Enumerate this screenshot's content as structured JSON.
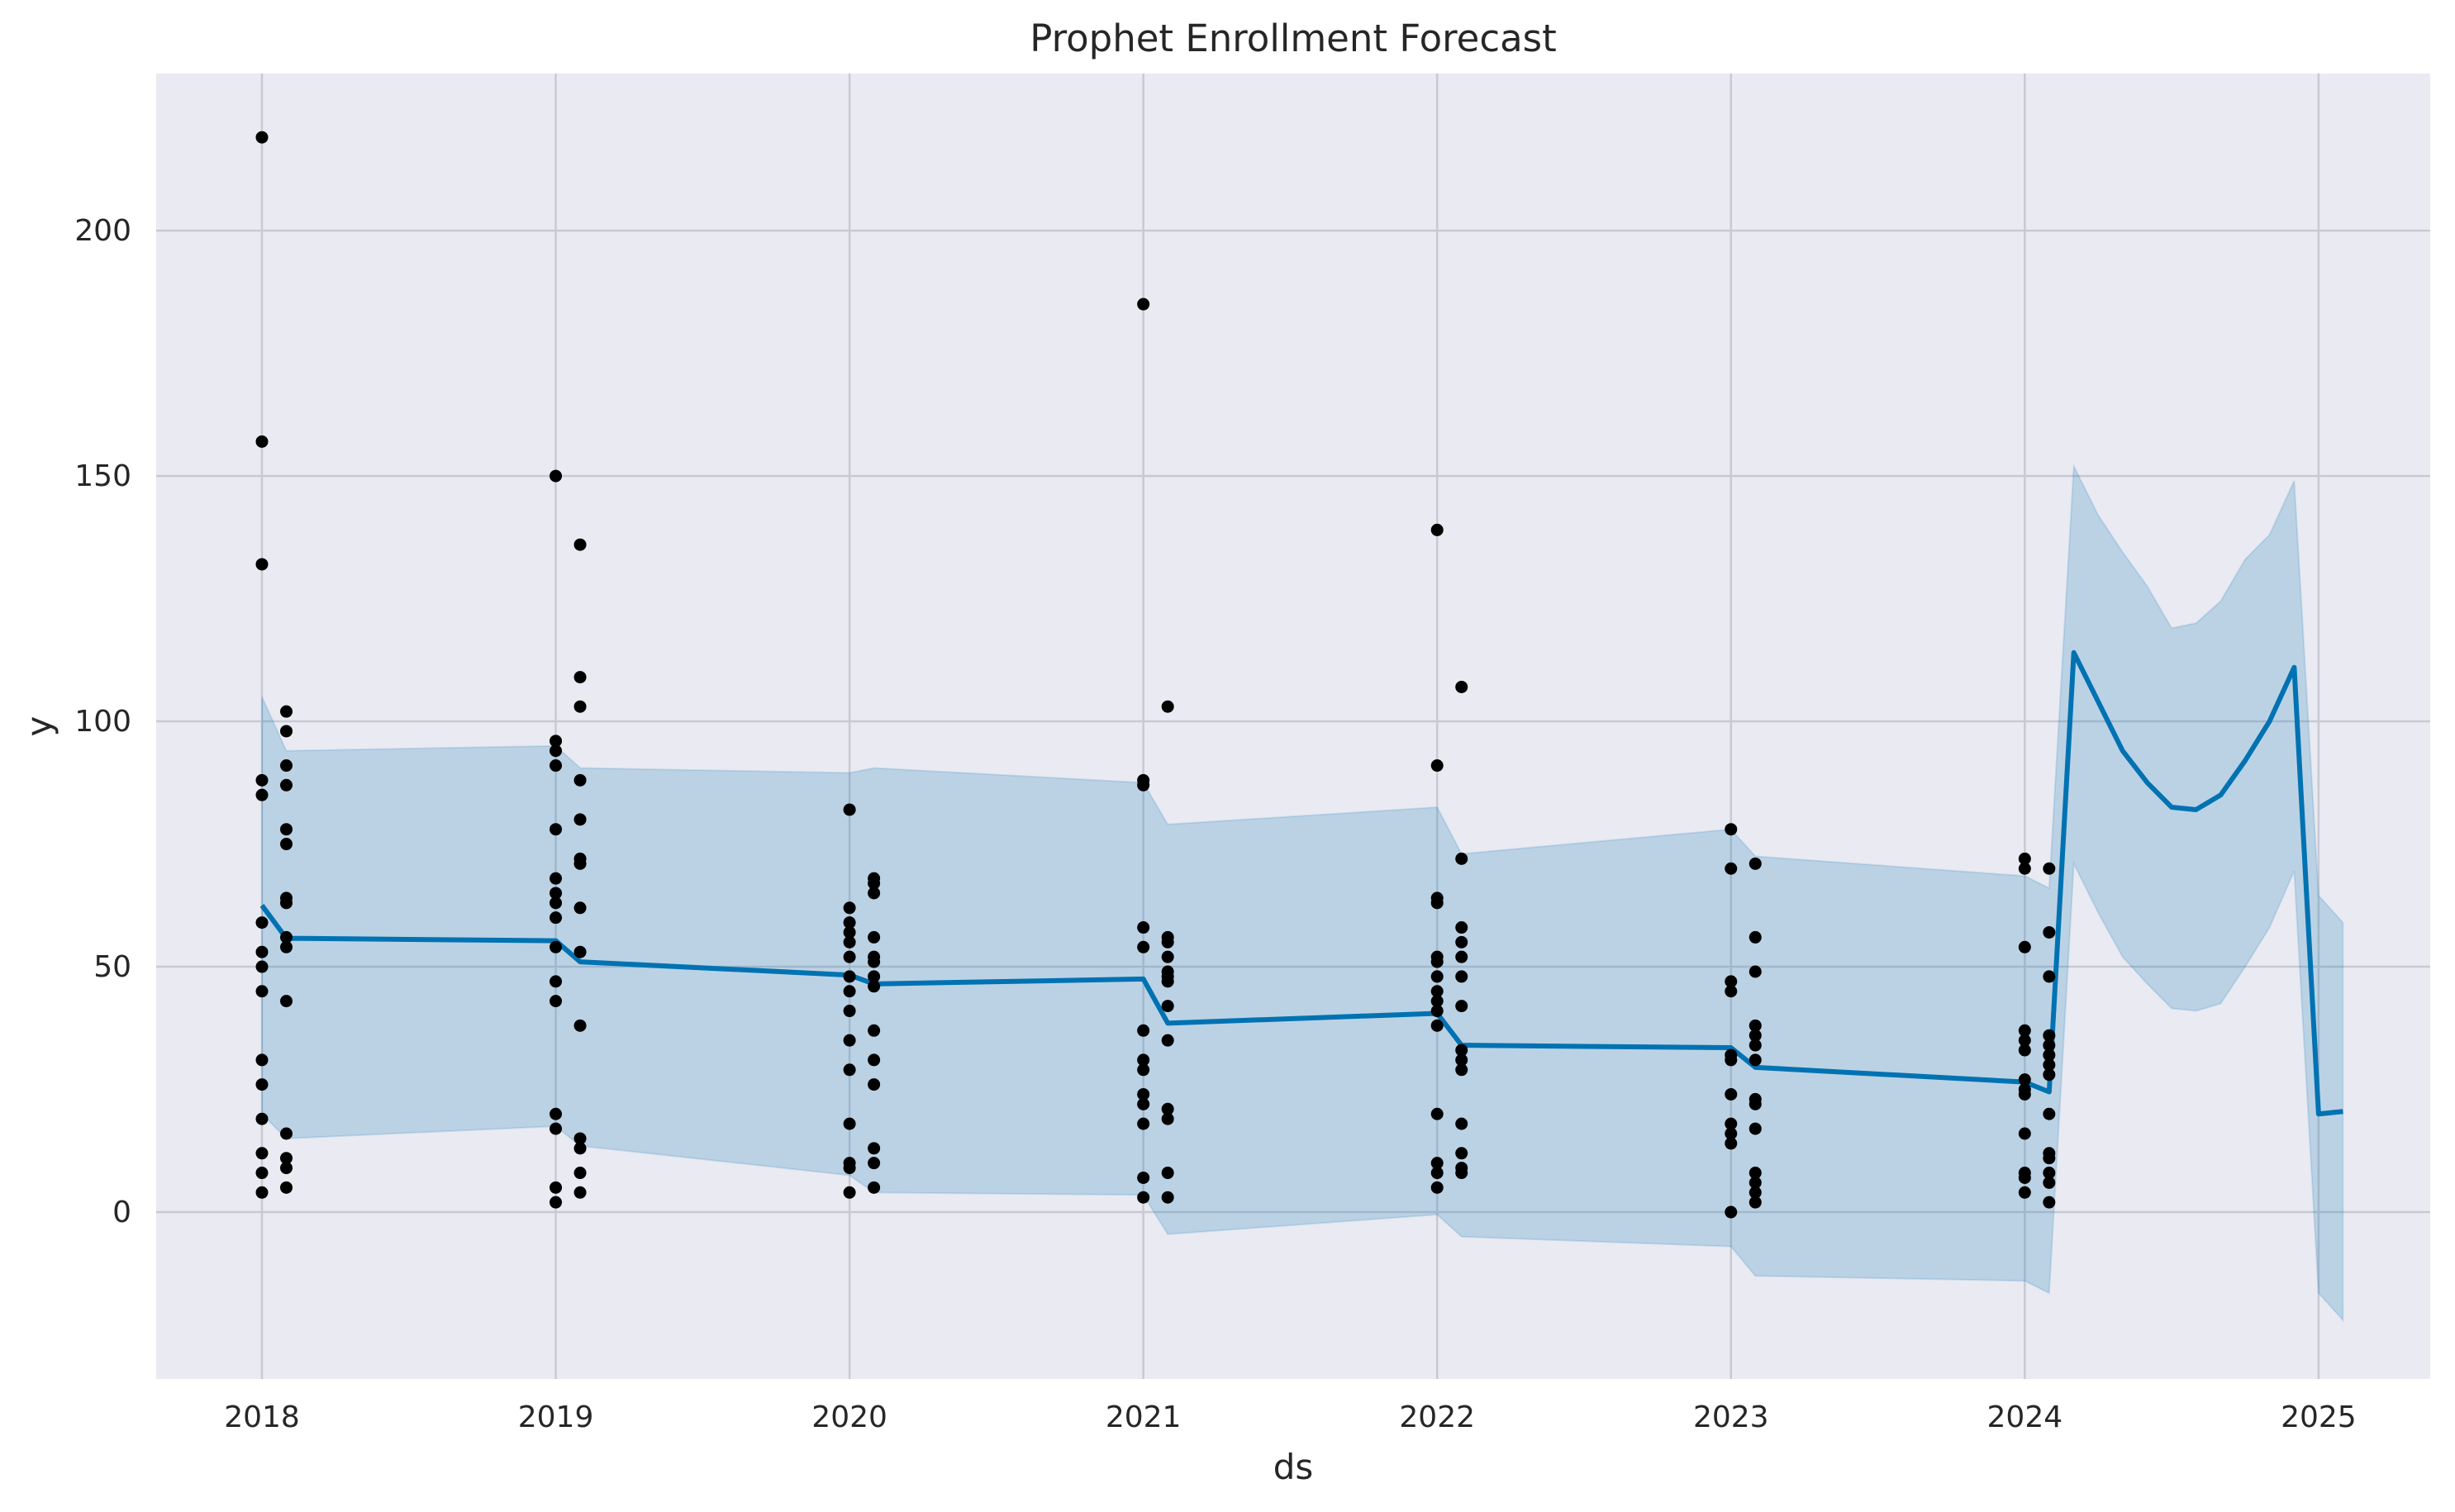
{
  "chart_data": {
    "type": "line",
    "title": "Prophet Enrollment Forecast",
    "xlabel": "ds",
    "ylabel": "y",
    "xlim": [
      2017.64,
      2025.38
    ],
    "ylim": [
      -34,
      232
    ],
    "x_ticks": [
      2018,
      2019,
      2020,
      2021,
      2022,
      2023,
      2024,
      2025
    ],
    "y_ticks": [
      0,
      50,
      100,
      150,
      200
    ],
    "grid": true,
    "legend": "none",
    "colors": {
      "background": "#EAEAF2",
      "grid": "#C9C9D3",
      "forecast_line": "#0072B2",
      "uncertainty_band": "#0072B2",
      "observed_points": "#000000"
    },
    "series": [
      {
        "kind": "scatter",
        "points": [
          [
            2018.0,
            219
          ],
          [
            2018.0,
            157
          ],
          [
            2018.0,
            132
          ],
          [
            2018.0,
            88
          ],
          [
            2018.0,
            85
          ],
          [
            2018.0,
            59
          ],
          [
            2018.0,
            53
          ],
          [
            2018.0,
            50
          ],
          [
            2018.0,
            45
          ],
          [
            2018.0,
            31
          ],
          [
            2018.0,
            26
          ],
          [
            2018.0,
            19
          ],
          [
            2018.0,
            12
          ],
          [
            2018.0,
            8
          ],
          [
            2018.0,
            4
          ],
          [
            2018.083,
            102
          ],
          [
            2018.083,
            98
          ],
          [
            2018.083,
            91
          ],
          [
            2018.083,
            87
          ],
          [
            2018.083,
            78
          ],
          [
            2018.083,
            75
          ],
          [
            2018.083,
            64
          ],
          [
            2018.083,
            63
          ],
          [
            2018.083,
            56
          ],
          [
            2018.083,
            54
          ],
          [
            2018.083,
            43
          ],
          [
            2018.083,
            16
          ],
          [
            2018.083,
            11
          ],
          [
            2018.083,
            9
          ],
          [
            2018.083,
            5
          ],
          [
            2019.0,
            150
          ],
          [
            2019.0,
            96
          ],
          [
            2019.0,
            94
          ],
          [
            2019.0,
            91
          ],
          [
            2019.0,
            78
          ],
          [
            2019.0,
            68
          ],
          [
            2019.0,
            65
          ],
          [
            2019.0,
            63
          ],
          [
            2019.0,
            60
          ],
          [
            2019.0,
            54
          ],
          [
            2019.0,
            47
          ],
          [
            2019.0,
            43
          ],
          [
            2019.0,
            20
          ],
          [
            2019.0,
            17
          ],
          [
            2019.0,
            5
          ],
          [
            2019.0,
            2
          ],
          [
            2019.083,
            136
          ],
          [
            2019.083,
            109
          ],
          [
            2019.083,
            103
          ],
          [
            2019.083,
            88
          ],
          [
            2019.083,
            80
          ],
          [
            2019.083,
            72
          ],
          [
            2019.083,
            71
          ],
          [
            2019.083,
            62
          ],
          [
            2019.083,
            53
          ],
          [
            2019.083,
            38
          ],
          [
            2019.083,
            15
          ],
          [
            2019.083,
            13
          ],
          [
            2019.083,
            8
          ],
          [
            2019.083,
            4
          ],
          [
            2020.0,
            82
          ],
          [
            2020.0,
            62
          ],
          [
            2020.0,
            59
          ],
          [
            2020.0,
            57
          ],
          [
            2020.0,
            55
          ],
          [
            2020.0,
            52
          ],
          [
            2020.0,
            48
          ],
          [
            2020.0,
            45
          ],
          [
            2020.0,
            41
          ],
          [
            2020.0,
            35
          ],
          [
            2020.0,
            29
          ],
          [
            2020.0,
            18
          ],
          [
            2020.0,
            10
          ],
          [
            2020.0,
            9
          ],
          [
            2020.0,
            4
          ],
          [
            2020.083,
            68
          ],
          [
            2020.083,
            67
          ],
          [
            2020.083,
            65
          ],
          [
            2020.083,
            56
          ],
          [
            2020.083,
            52
          ],
          [
            2020.083,
            51
          ],
          [
            2020.083,
            48
          ],
          [
            2020.083,
            46
          ],
          [
            2020.083,
            37
          ],
          [
            2020.083,
            31
          ],
          [
            2020.083,
            26
          ],
          [
            2020.083,
            13
          ],
          [
            2020.083,
            10
          ],
          [
            2020.083,
            5
          ],
          [
            2021.0,
            185
          ],
          [
            2021.0,
            88
          ],
          [
            2021.0,
            87
          ],
          [
            2021.0,
            58
          ],
          [
            2021.0,
            54
          ],
          [
            2021.0,
            37
          ],
          [
            2021.0,
            31
          ],
          [
            2021.0,
            29
          ],
          [
            2021.0,
            24
          ],
          [
            2021.0,
            22
          ],
          [
            2021.0,
            18
          ],
          [
            2021.0,
            7
          ],
          [
            2021.0,
            3
          ],
          [
            2021.083,
            103
          ],
          [
            2021.083,
            56
          ],
          [
            2021.083,
            55
          ],
          [
            2021.083,
            52
          ],
          [
            2021.083,
            49
          ],
          [
            2021.083,
            48
          ],
          [
            2021.083,
            47
          ],
          [
            2021.083,
            42
          ],
          [
            2021.083,
            35
          ],
          [
            2021.083,
            21
          ],
          [
            2021.083,
            19
          ],
          [
            2021.083,
            8
          ],
          [
            2021.083,
            3
          ],
          [
            2022.0,
            139
          ],
          [
            2022.0,
            91
          ],
          [
            2022.0,
            64
          ],
          [
            2022.0,
            63
          ],
          [
            2022.0,
            52
          ],
          [
            2022.0,
            51
          ],
          [
            2022.0,
            48
          ],
          [
            2022.0,
            45
          ],
          [
            2022.0,
            43
          ],
          [
            2022.0,
            41
          ],
          [
            2022.0,
            38
          ],
          [
            2022.0,
            20
          ],
          [
            2022.0,
            10
          ],
          [
            2022.0,
            8
          ],
          [
            2022.0,
            5
          ],
          [
            2022.083,
            107
          ],
          [
            2022.083,
            72
          ],
          [
            2022.083,
            58
          ],
          [
            2022.083,
            55
          ],
          [
            2022.083,
            52
          ],
          [
            2022.083,
            48
          ],
          [
            2022.083,
            42
          ],
          [
            2022.083,
            33
          ],
          [
            2022.083,
            31
          ],
          [
            2022.083,
            29
          ],
          [
            2022.083,
            18
          ],
          [
            2022.083,
            12
          ],
          [
            2022.083,
            9
          ],
          [
            2022.083,
            8
          ],
          [
            2023.0,
            78
          ],
          [
            2023.0,
            70
          ],
          [
            2023.0,
            47
          ],
          [
            2023.0,
            45
          ],
          [
            2023.0,
            32
          ],
          [
            2023.0,
            31
          ],
          [
            2023.0,
            24
          ],
          [
            2023.0,
            18
          ],
          [
            2023.0,
            16
          ],
          [
            2023.0,
            14
          ],
          [
            2023.0,
            0
          ],
          [
            2023.083,
            71
          ],
          [
            2023.083,
            56
          ],
          [
            2023.083,
            49
          ],
          [
            2023.083,
            38
          ],
          [
            2023.083,
            36
          ],
          [
            2023.083,
            34
          ],
          [
            2023.083,
            31
          ],
          [
            2023.083,
            23
          ],
          [
            2023.083,
            22
          ],
          [
            2023.083,
            17
          ],
          [
            2023.083,
            8
          ],
          [
            2023.083,
            6
          ],
          [
            2023.083,
            4
          ],
          [
            2023.083,
            2
          ],
          [
            2024.0,
            72
          ],
          [
            2024.0,
            70
          ],
          [
            2024.0,
            54
          ],
          [
            2024.0,
            37
          ],
          [
            2024.0,
            35
          ],
          [
            2024.0,
            33
          ],
          [
            2024.0,
            27
          ],
          [
            2024.0,
            25
          ],
          [
            2024.0,
            24
          ],
          [
            2024.0,
            16
          ],
          [
            2024.0,
            8
          ],
          [
            2024.0,
            7
          ],
          [
            2024.0,
            4
          ],
          [
            2024.083,
            70
          ],
          [
            2024.083,
            57
          ],
          [
            2024.083,
            48
          ],
          [
            2024.083,
            36
          ],
          [
            2024.083,
            34
          ],
          [
            2024.083,
            32
          ],
          [
            2024.083,
            30
          ],
          [
            2024.083,
            28
          ],
          [
            2024.083,
            20
          ],
          [
            2024.083,
            12
          ],
          [
            2024.083,
            11
          ],
          [
            2024.083,
            8
          ],
          [
            2024.083,
            6
          ],
          [
            2024.083,
            2
          ]
        ]
      },
      {
        "kind": "line",
        "points": [
          [
            2018.0,
            62.5
          ],
          [
            2018.083,
            55.8
          ],
          [
            2019.0,
            55.3
          ],
          [
            2019.083,
            51.0
          ],
          [
            2020.0,
            48.3
          ],
          [
            2020.083,
            46.5
          ],
          [
            2021.0,
            47.5
          ],
          [
            2021.083,
            38.5
          ],
          [
            2022.0,
            40.5
          ],
          [
            2022.083,
            34.0
          ],
          [
            2023.0,
            33.5
          ],
          [
            2023.083,
            29.5
          ],
          [
            2024.0,
            26.5
          ],
          [
            2024.083,
            24.5
          ],
          [
            2024.167,
            114
          ],
          [
            2024.25,
            104
          ],
          [
            2024.333,
            94
          ],
          [
            2024.417,
            87.5
          ],
          [
            2024.5,
            82.5
          ],
          [
            2024.583,
            82
          ],
          [
            2024.667,
            85
          ],
          [
            2024.75,
            92
          ],
          [
            2024.833,
            100
          ],
          [
            2024.917,
            111
          ],
          [
            2025.0,
            20
          ],
          [
            2025.083,
            20.5
          ]
        ]
      },
      {
        "kind": "band",
        "upper": [
          [
            2018.0,
            105
          ],
          [
            2018.083,
            94
          ],
          [
            2019.0,
            95
          ],
          [
            2019.083,
            90.5
          ],
          [
            2020.0,
            89.5
          ],
          [
            2020.083,
            90.5
          ],
          [
            2021.0,
            87.5
          ],
          [
            2021.083,
            79
          ],
          [
            2022.0,
            82.5
          ],
          [
            2022.083,
            73
          ],
          [
            2023.0,
            78
          ],
          [
            2023.083,
            72.5
          ],
          [
            2024.0,
            68.5
          ],
          [
            2024.083,
            66
          ],
          [
            2024.167,
            152
          ],
          [
            2024.25,
            142
          ],
          [
            2024.333,
            134.5
          ],
          [
            2024.417,
            127.5
          ],
          [
            2024.5,
            119
          ],
          [
            2024.583,
            120
          ],
          [
            2024.667,
            124.5
          ],
          [
            2024.75,
            133
          ],
          [
            2024.833,
            138
          ],
          [
            2024.917,
            149
          ],
          [
            2025.0,
            64.5
          ],
          [
            2025.083,
            59
          ]
        ],
        "lower": [
          [
            2018.0,
            20
          ],
          [
            2018.083,
            15
          ],
          [
            2019.0,
            17.5
          ],
          [
            2019.083,
            13.5
          ],
          [
            2020.0,
            7.5
          ],
          [
            2020.083,
            4
          ],
          [
            2021.0,
            3.5
          ],
          [
            2021.083,
            -4.5
          ],
          [
            2022.0,
            -0.5
          ],
          [
            2022.083,
            -5
          ],
          [
            2023.0,
            -7
          ],
          [
            2023.083,
            -13
          ],
          [
            2024.0,
            -14
          ],
          [
            2024.083,
            -16.5
          ],
          [
            2024.167,
            71
          ],
          [
            2024.25,
            61
          ],
          [
            2024.333,
            52
          ],
          [
            2024.417,
            46.5
          ],
          [
            2024.5,
            41.5
          ],
          [
            2024.583,
            41
          ],
          [
            2024.667,
            42.5
          ],
          [
            2024.75,
            50
          ],
          [
            2024.833,
            58
          ],
          [
            2024.917,
            69.5
          ],
          [
            2025.0,
            -16.5
          ],
          [
            2025.083,
            -22
          ]
        ]
      }
    ]
  }
}
